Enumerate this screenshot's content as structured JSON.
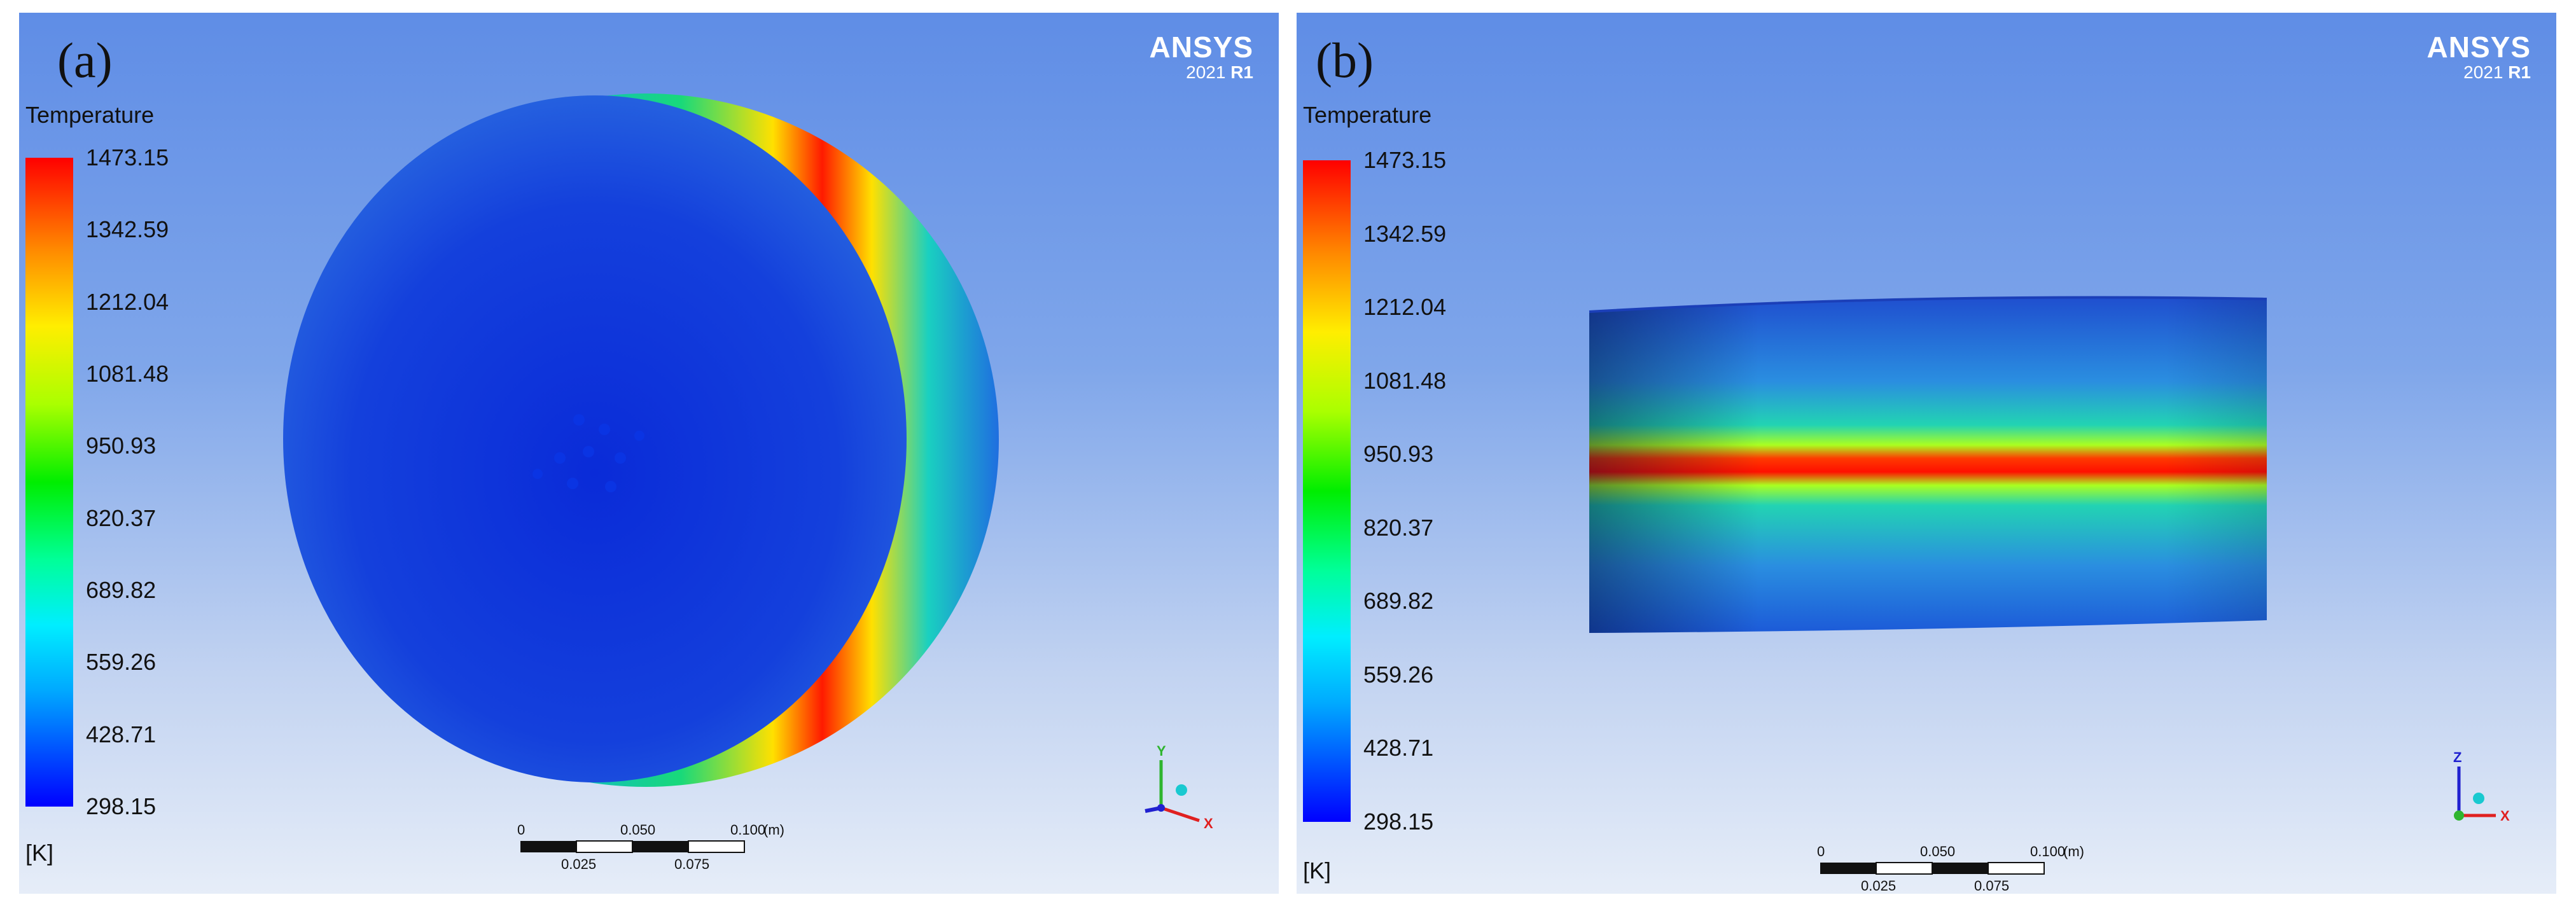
{
  "panels": [
    {
      "label": "(a)",
      "brand": {
        "name": "ANSYS",
        "version_year": "2021",
        "version_release": "R1"
      },
      "legend": {
        "title": "Temperature",
        "unit": "[K]",
        "ticks": [
          "1473.15",
          "1342.59",
          "1212.04",
          "1081.48",
          "950.93",
          "820.37",
          "689.82",
          "559.26",
          "428.71",
          "298.15"
        ]
      },
      "scale": {
        "top_labels": [
          "0",
          "0.050",
          "0.100",
          "(m)"
        ],
        "bottom_labels": [
          "0.025",
          "0.075"
        ]
      },
      "axes": {
        "labels": [
          "Y",
          "X"
        ]
      }
    },
    {
      "label": "(b)",
      "brand": {
        "name": "ANSYS",
        "version_year": "2021",
        "version_release": "R1"
      },
      "legend": {
        "title": "Temperature",
        "unit": "[K]",
        "ticks": [
          "1473.15",
          "1342.59",
          "1212.04",
          "1081.48",
          "950.93",
          "820.37",
          "689.82",
          "559.26",
          "428.71",
          "298.15"
        ]
      },
      "scale": {
        "top_labels": [
          "0",
          "0.050",
          "0.100",
          "(m)"
        ],
        "bottom_labels": [
          "0.025",
          "0.075"
        ]
      },
      "axes": {
        "labels": [
          "Z",
          "X"
        ]
      }
    }
  ]
}
